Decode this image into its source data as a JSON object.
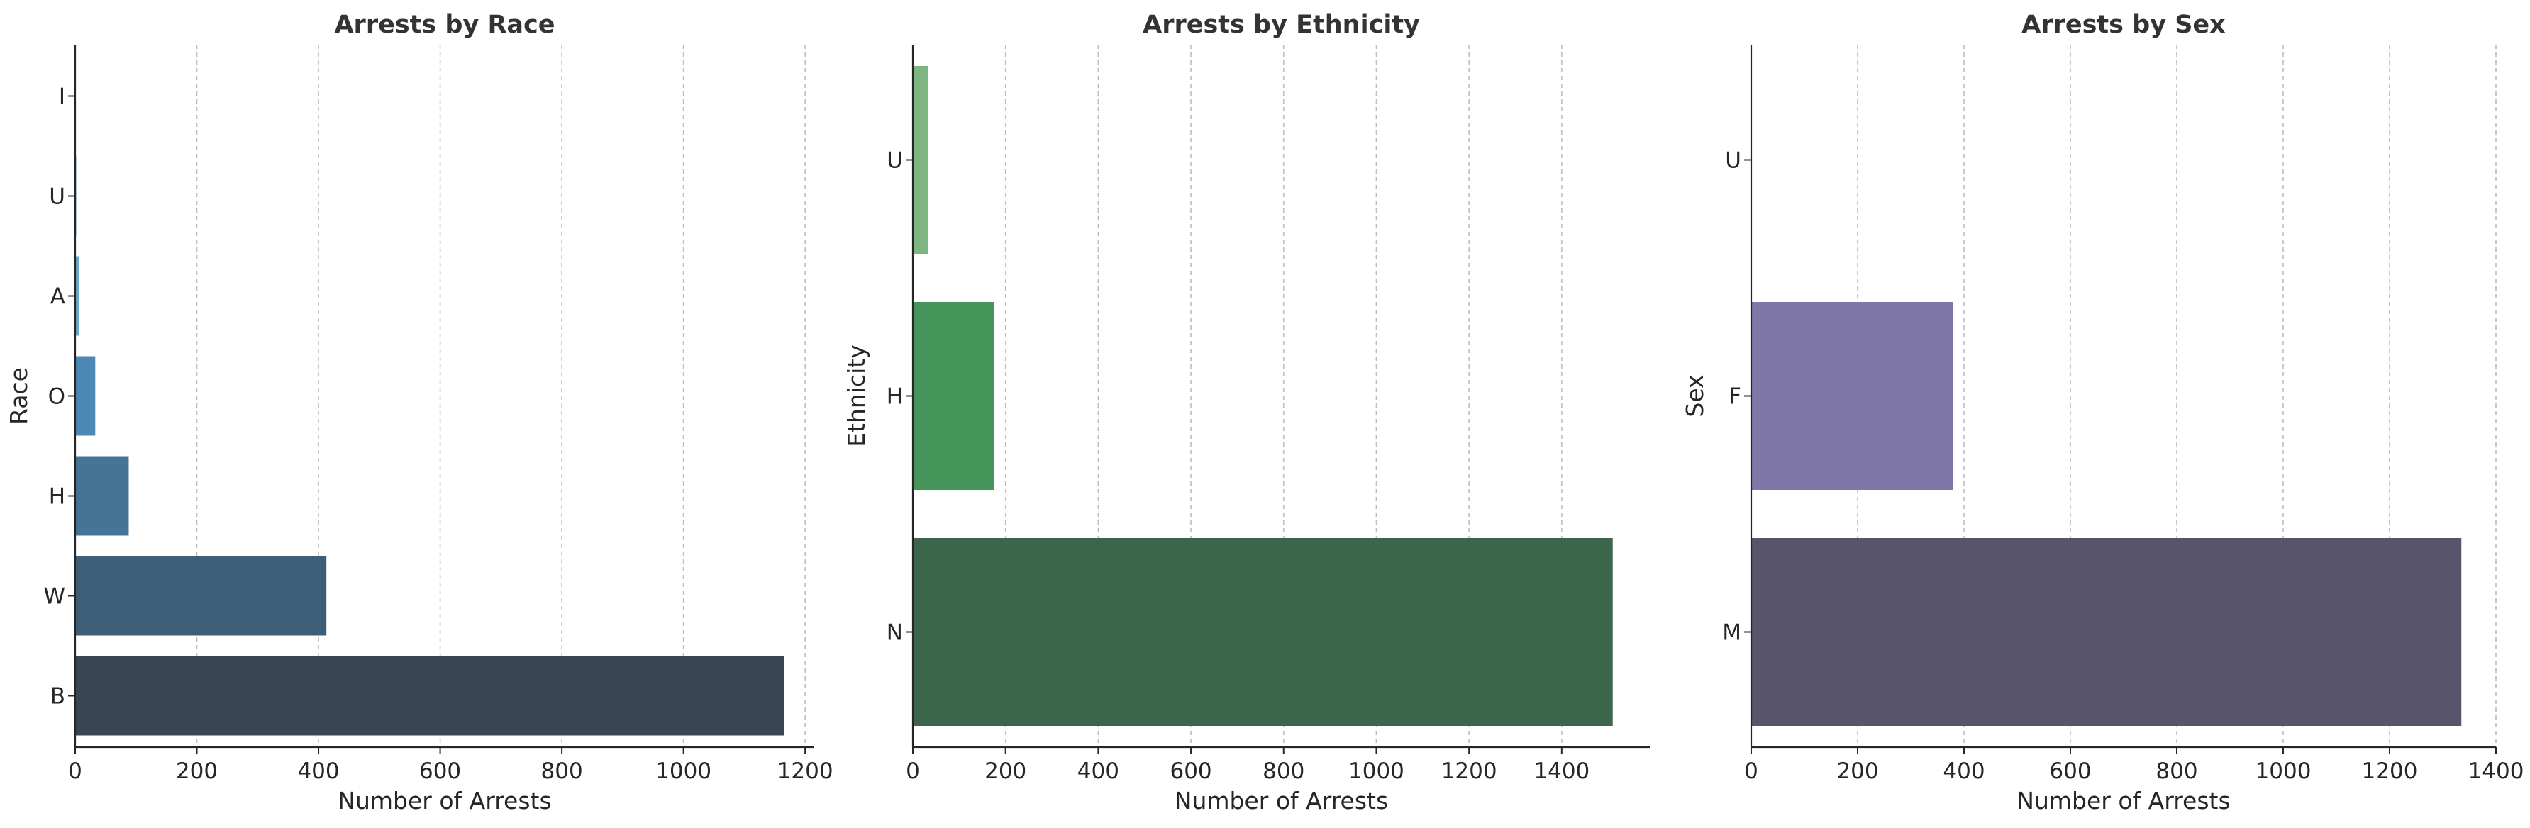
{
  "chart_data": [
    {
      "type": "bar",
      "orientation": "horizontal",
      "title": "Arrests by Race",
      "xlabel": "Number of Arrests",
      "ylabel": "Race",
      "categories": [
        "B",
        "W",
        "H",
        "O",
        "A",
        "U",
        "I"
      ],
      "values": [
        1165,
        413,
        88,
        33,
        6,
        2,
        1
      ],
      "xlim": [
        0,
        1215
      ],
      "xticks": [
        0,
        200,
        400,
        600,
        800,
        1000,
        1200
      ],
      "colors": [
        "#384552",
        "#3d5e76",
        "#447496",
        "#4b88b4",
        "#6ea8c9",
        "#93c0d8",
        "#b6d5e6"
      ],
      "grid": "x-dashed"
    },
    {
      "type": "bar",
      "orientation": "horizontal",
      "title": "Arrests by Ethnicity",
      "xlabel": "Number of Arrests",
      "ylabel": "Ethnicity",
      "categories": [
        "N",
        "H",
        "U"
      ],
      "values": [
        1510,
        175,
        33
      ],
      "xlim": [
        0,
        1590
      ],
      "xticks": [
        0,
        200,
        400,
        600,
        800,
        1000,
        1200,
        1400
      ],
      "colors": [
        "#3b664a",
        "#45955a",
        "#7eb67f"
      ],
      "grid": "x-dashed"
    },
    {
      "type": "bar",
      "orientation": "horizontal",
      "title": "Arrests by Sex",
      "xlabel": "Number of Arrests",
      "ylabel": "Sex",
      "categories": [
        "M",
        "F",
        "U"
      ],
      "values": [
        1335,
        380,
        0
      ],
      "xlim": [
        0,
        1400
      ],
      "xticks": [
        0,
        200,
        400,
        600,
        800,
        1000,
        1200,
        1400
      ],
      "colors": [
        "#58546c",
        "#7f77a8",
        "#a9a2cf"
      ],
      "grid": "x-dashed"
    }
  ]
}
